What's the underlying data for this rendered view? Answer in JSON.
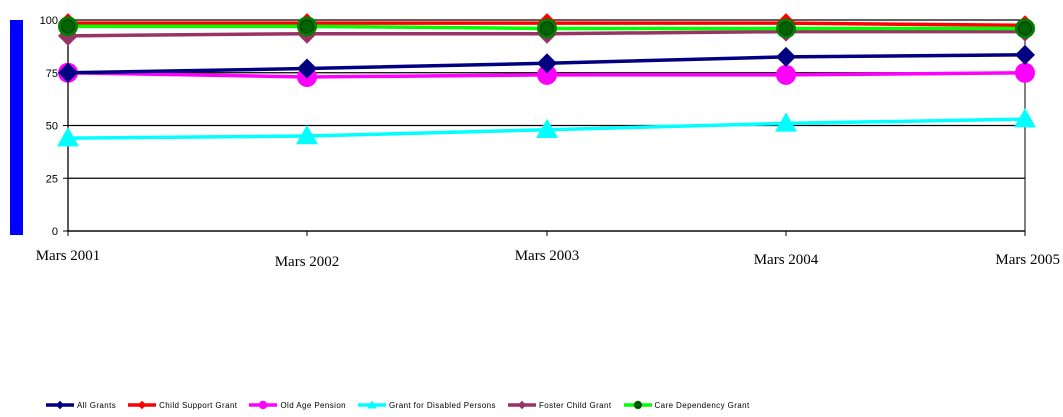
{
  "chart_data": {
    "type": "line",
    "title": "",
    "xlabel": "",
    "ylabel": "",
    "categories": [
      "Mars 2001",
      "Mars 2002",
      "Mars 2003",
      "Mars 2004",
      "Mars 2005"
    ],
    "ylim": [
      0,
      100
    ],
    "yticks": [
      0,
      25,
      50,
      75,
      100
    ],
    "grid": true,
    "legend_position": "bottom",
    "accent_bar_color": "#0000ff",
    "series": [
      {
        "name": "All Grants",
        "color": "#000080",
        "marker": "diamond",
        "values": [
          75,
          77,
          79.5,
          82.5,
          83.5
        ]
      },
      {
        "name": "Child Support Grant",
        "color": "#ff0000",
        "marker": "diamond",
        "values": [
          98.5,
          98.5,
          98.5,
          98.5,
          97.5
        ]
      },
      {
        "name": "Old Age Pension",
        "color": "#ff00ff",
        "marker": "circle",
        "values": [
          75,
          73,
          74,
          74,
          75
        ]
      },
      {
        "name": "Grant for Disabled Persons",
        "color": "#00ffff",
        "marker": "triangle",
        "values": [
          44,
          45,
          48,
          51,
          53
        ]
      },
      {
        "name": "Foster Child Grant",
        "color": "#993366",
        "marker": "diamond",
        "values": [
          92.5,
          93.5,
          93.5,
          94.5,
          94.5
        ]
      },
      {
        "name": "Care Dependency Grant",
        "color": "#00ff00",
        "marker": "circle-dark",
        "values": [
          97,
          97,
          96,
          96,
          96
        ]
      }
    ]
  }
}
